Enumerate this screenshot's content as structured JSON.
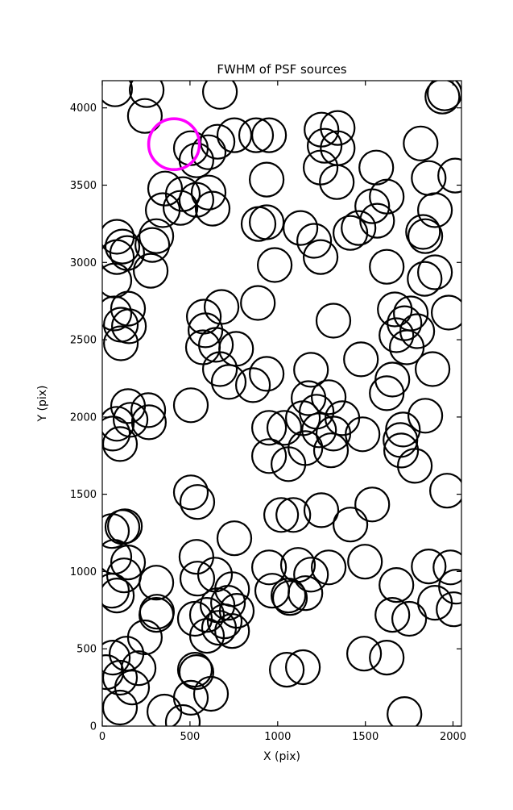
{
  "chart_data": {
    "type": "scatter",
    "title": "FWHM of PSF sources",
    "xlabel": "X (pix)",
    "ylabel": "Y (pix)",
    "xlim": [
      0,
      2048
    ],
    "ylim": [
      0,
      4176
    ],
    "xticks": [
      0,
      500,
      1000,
      1500,
      2000
    ],
    "yticks": [
      0,
      500,
      1000,
      1500,
      2000,
      2500,
      3000,
      3500,
      4000
    ],
    "grid": false,
    "legend": null,
    "marker": {
      "shape": "open-circle",
      "fill": "none",
      "stroke": "#000000",
      "stroke_width_px": 2.2,
      "radius_px": 21
    },
    "highlight": {
      "x": 409,
      "y": 3765,
      "stroke": "#ff00ff",
      "stroke_width_px": 3.6,
      "radius_px": 31.5
    },
    "points": [
      [
        73,
        4120
      ],
      [
        253,
        4115
      ],
      [
        671,
        4104
      ],
      [
        1952,
        4094
      ],
      [
        1939,
        4073
      ],
      [
        243,
        3948
      ],
      [
        505,
        3739
      ],
      [
        657,
        3781
      ],
      [
        606,
        3713
      ],
      [
        537,
        3661
      ],
      [
        753,
        3823
      ],
      [
        877,
        3823
      ],
      [
        951,
        3823
      ],
      [
        1250,
        3859
      ],
      [
        1342,
        3870
      ],
      [
        1268,
        3755
      ],
      [
        1342,
        3739
      ],
      [
        1815,
        3770
      ],
      [
        1562,
        3614
      ],
      [
        1861,
        3546
      ],
      [
        2012,
        3562
      ],
      [
        937,
        3536
      ],
      [
        1245,
        3614
      ],
      [
        1337,
        3520
      ],
      [
        1622,
        3426
      ],
      [
        1539,
        3364
      ],
      [
        1897,
        3338
      ],
      [
        1567,
        3270
      ],
      [
        1461,
        3223
      ],
      [
        1829,
        3197
      ],
      [
        1842,
        3170
      ],
      [
        1415,
        3191
      ],
      [
        358,
        3478
      ],
      [
        459,
        3442
      ],
      [
        345,
        3338
      ],
      [
        446,
        3353
      ],
      [
        537,
        3405
      ],
      [
        606,
        3452
      ],
      [
        629,
        3348
      ],
      [
        83,
        3166
      ],
      [
        308,
        3170
      ],
      [
        891,
        3249
      ],
      [
        937,
        3260
      ],
      [
        1130,
        3223
      ],
      [
        1208,
        3140
      ],
      [
        115,
        3103
      ],
      [
        285,
        3113
      ],
      [
        83,
        3035
      ],
      [
        142,
        3061
      ],
      [
        276,
        2946
      ],
      [
        69,
        2883
      ],
      [
        147,
        2701
      ],
      [
        69,
        2670
      ],
      [
        106,
        2597
      ],
      [
        152,
        2587
      ],
      [
        106,
        2477
      ],
      [
        983,
        2983
      ],
      [
        1245,
        3035
      ],
      [
        887,
        2738
      ],
      [
        680,
        2712
      ],
      [
        579,
        2649
      ],
      [
        648,
        2467
      ],
      [
        574,
        2451
      ],
      [
        763,
        2441
      ],
      [
        671,
        2310
      ],
      [
        588,
        2561
      ],
      [
        1318,
        2623
      ],
      [
        937,
        2279
      ],
      [
        1190,
        2305
      ],
      [
        721,
        2227
      ],
      [
        859,
        2206
      ],
      [
        1176,
        2122
      ],
      [
        1291,
        2128
      ],
      [
        1622,
        2972
      ],
      [
        1897,
        2936
      ],
      [
        1838,
        2894
      ],
      [
        1668,
        2696
      ],
      [
        1759,
        2670
      ],
      [
        1723,
        2607
      ],
      [
        1796,
        2555
      ],
      [
        1677,
        2529
      ],
      [
        1736,
        2451
      ],
      [
        1975,
        2675
      ],
      [
        1475,
        2373
      ],
      [
        1654,
        2242
      ],
      [
        1883,
        2310
      ],
      [
        1622,
        2154
      ],
      [
        1842,
        2008
      ],
      [
        147,
        2070
      ],
      [
        262,
        2044
      ],
      [
        83,
        1956
      ],
      [
        161,
        1982
      ],
      [
        266,
        1966
      ],
      [
        101,
        1825
      ],
      [
        60,
        1893
      ],
      [
        505,
        2076
      ],
      [
        505,
        1512
      ],
      [
        542,
        1450
      ],
      [
        129,
        1293
      ],
      [
        115,
        1288
      ],
      [
        55,
        1262
      ],
      [
        69,
        1095
      ],
      [
        147,
        1059
      ],
      [
        537,
        1095
      ],
      [
        753,
        1215
      ],
      [
        951,
        1930
      ],
      [
        1038,
        1930
      ],
      [
        1144,
        1992
      ],
      [
        1222,
        2034
      ],
      [
        1236,
        1914
      ],
      [
        1318,
        1893
      ],
      [
        951,
        1747
      ],
      [
        1061,
        1695
      ],
      [
        1158,
        1799
      ],
      [
        1304,
        1784
      ],
      [
        1369,
        1992
      ],
      [
        1020,
        1366
      ],
      [
        1089,
        1366
      ],
      [
        1249,
        1397
      ],
      [
        1415,
        1304
      ],
      [
        1484,
        1888
      ],
      [
        1714,
        1919
      ],
      [
        1700,
        1851
      ],
      [
        1704,
        1783
      ],
      [
        1782,
        1684
      ],
      [
        1966,
        1523
      ],
      [
        1539,
        1434
      ],
      [
        1861,
        1033
      ],
      [
        1985,
        1027
      ],
      [
        2017,
        902
      ],
      [
        1498,
        1064
      ],
      [
        124,
        975
      ],
      [
        83,
        845
      ],
      [
        55,
        876
      ],
      [
        308,
        928
      ],
      [
        312,
        740
      ],
      [
        308,
        720
      ],
      [
        243,
        574
      ],
      [
        138,
        469
      ],
      [
        60,
        443
      ],
      [
        207,
        375
      ],
      [
        101,
        313
      ],
      [
        23,
        349
      ],
      [
        170,
        250
      ],
      [
        101,
        120
      ],
      [
        542,
        954
      ],
      [
        643,
        980
      ],
      [
        528,
        694
      ],
      [
        597,
        720
      ],
      [
        657,
        782
      ],
      [
        666,
        636
      ],
      [
        597,
        584
      ],
      [
        740,
        886
      ],
      [
        717,
        798
      ],
      [
        767,
        746
      ],
      [
        698,
        678
      ],
      [
        740,
        615
      ],
      [
        528,
        365
      ],
      [
        537,
        349
      ],
      [
        620,
        209
      ],
      [
        505,
        183
      ],
      [
        354,
        94
      ],
      [
        459,
        26
      ],
      [
        951,
        1027
      ],
      [
        1116,
        1043
      ],
      [
        1190,
        980
      ],
      [
        1291,
        1027
      ],
      [
        1061,
        845
      ],
      [
        1070,
        829
      ],
      [
        1158,
        860
      ],
      [
        969,
        876
      ],
      [
        1052,
        365
      ],
      [
        1144,
        381
      ],
      [
        1493,
        469
      ],
      [
        1622,
        443
      ],
      [
        1677,
        913
      ],
      [
        1897,
        798
      ],
      [
        2003,
        756
      ],
      [
        1654,
        720
      ],
      [
        1750,
        694
      ],
      [
        1723,
        78
      ]
    ]
  }
}
